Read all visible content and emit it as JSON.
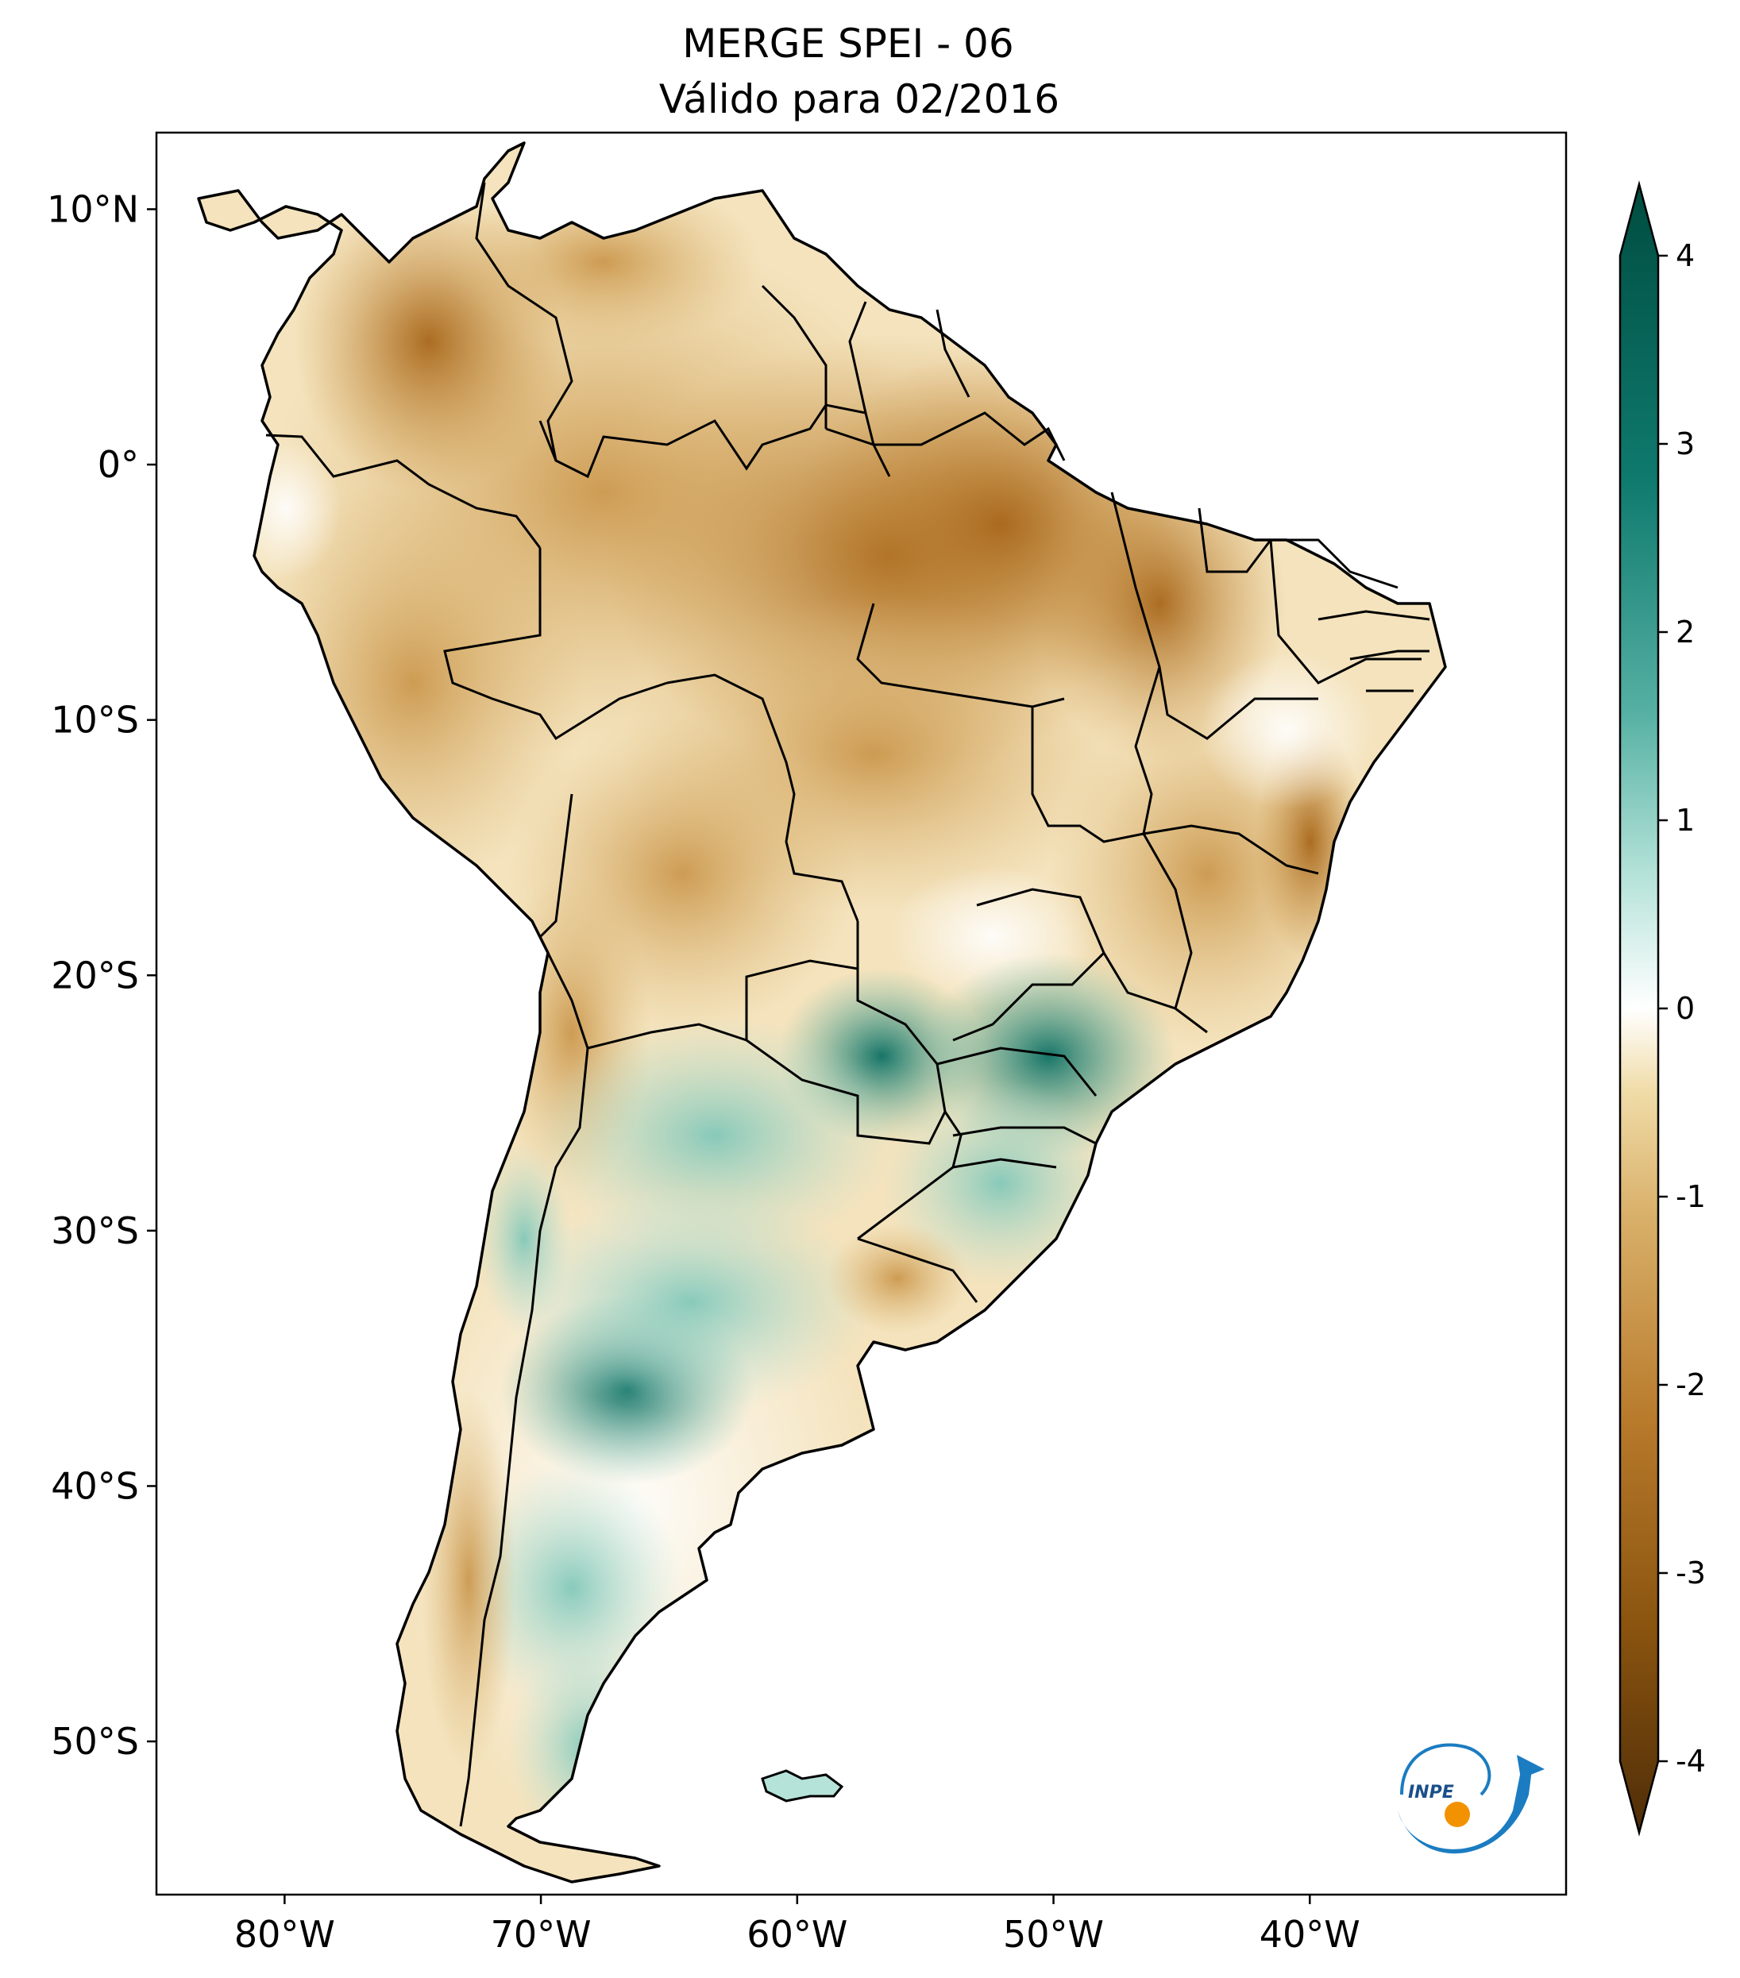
{
  "title": {
    "line1": "MERGE   SPEI - 06",
    "line2": "Válido para 02/2016"
  },
  "axes": {
    "lon_labels": [
      "80°W",
      "70°W",
      "60°W",
      "50°W",
      "40°W"
    ],
    "lon_values": [
      -80,
      -70,
      -60,
      -50,
      -40
    ],
    "lat_labels": [
      "10°N",
      "0°",
      "10°S",
      "20°S",
      "30°S",
      "40°S",
      "50°S"
    ],
    "lat_values": [
      10,
      0,
      -10,
      -20,
      -30,
      -40,
      -50
    ],
    "lon_range": [
      -85,
      -30
    ],
    "lat_range": [
      -56,
      13
    ]
  },
  "colorbar": {
    "labels": [
      "4",
      "3",
      "2",
      "1",
      "0",
      "-1",
      "-2",
      "-3",
      "-4"
    ],
    "values": [
      4,
      3,
      2,
      1,
      0,
      -1,
      -2,
      -3,
      -4
    ],
    "extend": "both",
    "colormap": "BrBG",
    "stops": [
      "#4f2d08",
      "#8a540f",
      "#b87a2b",
      "#d9b06a",
      "#f0dca8",
      "#ffffff",
      "#b5e3d9",
      "#55b0a3",
      "#0f7a6e",
      "#004c40"
    ]
  },
  "logo": {
    "text": "INPE",
    "colors": [
      "#1b7cc1",
      "#f29200"
    ]
  }
}
